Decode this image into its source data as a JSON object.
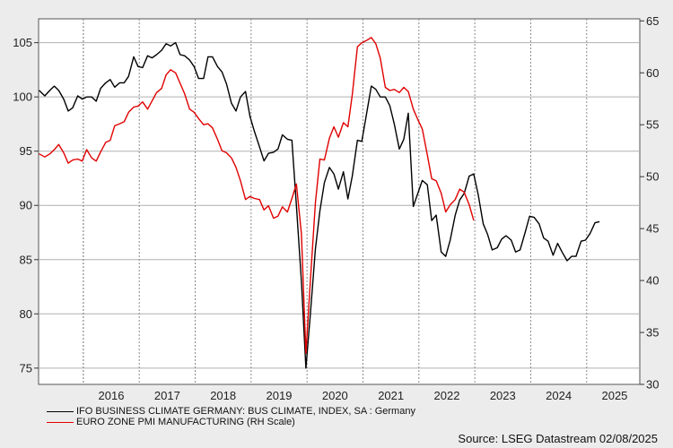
{
  "chart_data": {
    "type": "line",
    "x_axis": {
      "tick_labels": [
        "2016",
        "2017",
        "2018",
        "2019",
        "2020",
        "2021",
        "2022",
        "2023",
        "2024",
        "2025"
      ],
      "range": [
        2015.2,
        2025.95
      ]
    },
    "y_left": {
      "ticks": [
        75,
        80,
        85,
        90,
        95,
        100,
        105
      ],
      "range": [
        73.5,
        107.2
      ]
    },
    "y_right": {
      "ticks": [
        30,
        35,
        40,
        45,
        50,
        55,
        60,
        65
      ],
      "range": [
        30,
        65.2
      ]
    },
    "grid": true,
    "series": [
      {
        "name": "IFO BUSINESS CLIMATE GERMANY: BUS CLIMATE, INDEX, SA : Germany",
        "axis": "left",
        "color": "#000000",
        "points": [
          [
            2015.21,
            100.6
          ],
          [
            2015.31,
            100.1
          ],
          [
            2015.4,
            100.6
          ],
          [
            2015.48,
            101.0
          ],
          [
            2015.56,
            100.6
          ],
          [
            2015.65,
            99.8
          ],
          [
            2015.73,
            98.7
          ],
          [
            2015.81,
            99.0
          ],
          [
            2015.9,
            100.1
          ],
          [
            2015.98,
            99.8
          ],
          [
            2016.06,
            100.0
          ],
          [
            2016.15,
            100.0
          ],
          [
            2016.23,
            99.6
          ],
          [
            2016.31,
            100.8
          ],
          [
            2016.4,
            101.3
          ],
          [
            2016.48,
            101.6
          ],
          [
            2016.56,
            100.9
          ],
          [
            2016.65,
            101.3
          ],
          [
            2016.73,
            101.3
          ],
          [
            2016.81,
            101.9
          ],
          [
            2016.9,
            103.7
          ],
          [
            2016.98,
            102.8
          ],
          [
            2017.06,
            102.7
          ],
          [
            2017.15,
            103.8
          ],
          [
            2017.23,
            103.6
          ],
          [
            2017.31,
            103.9
          ],
          [
            2017.4,
            104.3
          ],
          [
            2017.48,
            104.9
          ],
          [
            2017.56,
            104.7
          ],
          [
            2017.65,
            105.0
          ],
          [
            2017.73,
            103.9
          ],
          [
            2017.81,
            103.8
          ],
          [
            2017.9,
            103.4
          ],
          [
            2017.98,
            102.8
          ],
          [
            2018.06,
            101.7
          ],
          [
            2018.15,
            101.7
          ],
          [
            2018.23,
            103.7
          ],
          [
            2018.31,
            103.7
          ],
          [
            2018.4,
            102.8
          ],
          [
            2018.48,
            102.3
          ],
          [
            2018.56,
            101.2
          ],
          [
            2018.65,
            99.4
          ],
          [
            2018.73,
            98.7
          ],
          [
            2018.81,
            100.0
          ],
          [
            2018.9,
            100.5
          ],
          [
            2018.98,
            98.2
          ],
          [
            2019.06,
            96.8
          ],
          [
            2019.15,
            95.4
          ],
          [
            2019.23,
            94.1
          ],
          [
            2019.31,
            94.8
          ],
          [
            2019.4,
            94.9
          ],
          [
            2019.48,
            95.2
          ],
          [
            2019.56,
            96.5
          ],
          [
            2019.65,
            96.1
          ],
          [
            2019.73,
            96.0
          ],
          [
            2019.81,
            90.0
          ],
          [
            2019.9,
            83.0
          ],
          [
            2019.98,
            75.0
          ],
          [
            2020.06,
            80.0
          ],
          [
            2020.15,
            86.0
          ],
          [
            2020.23,
            89.5
          ],
          [
            2020.31,
            92.1
          ],
          [
            2020.4,
            93.5
          ],
          [
            2020.48,
            92.9
          ],
          [
            2020.56,
            91.5
          ],
          [
            2020.65,
            93.1
          ],
          [
            2020.73,
            90.6
          ],
          [
            2020.81,
            92.7
          ],
          [
            2020.9,
            96.0
          ],
          [
            2020.98,
            95.9
          ],
          [
            2021.06,
            98.3
          ],
          [
            2021.15,
            101.0
          ],
          [
            2021.23,
            100.7
          ],
          [
            2021.31,
            100.0
          ],
          [
            2021.4,
            100.0
          ],
          [
            2021.48,
            99.2
          ],
          [
            2021.56,
            97.5
          ],
          [
            2021.65,
            95.2
          ],
          [
            2021.73,
            96.1
          ],
          [
            2021.81,
            98.5
          ],
          [
            2021.9,
            89.9
          ],
          [
            2021.98,
            91.1
          ],
          [
            2022.06,
            92.3
          ],
          [
            2022.15,
            91.9
          ],
          [
            2022.23,
            88.6
          ],
          [
            2022.31,
            89.1
          ],
          [
            2022.4,
            85.7
          ],
          [
            2022.48,
            85.3
          ],
          [
            2022.56,
            86.8
          ],
          [
            2022.65,
            89.1
          ],
          [
            2022.73,
            90.5
          ],
          [
            2022.81,
            91.1
          ],
          [
            2022.9,
            92.7
          ],
          [
            2022.98,
            92.9
          ],
          [
            2023.06,
            91.0
          ],
          [
            2023.15,
            88.3
          ],
          [
            2023.23,
            87.3
          ],
          [
            2023.31,
            85.9
          ],
          [
            2023.4,
            86.1
          ],
          [
            2023.48,
            86.9
          ],
          [
            2023.56,
            87.2
          ],
          [
            2023.65,
            86.8
          ],
          [
            2023.73,
            85.7
          ],
          [
            2023.81,
            85.9
          ],
          [
            2023.9,
            87.5
          ],
          [
            2023.98,
            89.0
          ],
          [
            2024.06,
            88.9
          ],
          [
            2024.15,
            88.3
          ],
          [
            2024.23,
            87.0
          ],
          [
            2024.31,
            86.7
          ],
          [
            2024.4,
            85.4
          ],
          [
            2024.48,
            86.5
          ],
          [
            2024.56,
            85.7
          ],
          [
            2024.65,
            84.9
          ],
          [
            2024.73,
            85.3
          ],
          [
            2024.81,
            85.3
          ],
          [
            2024.9,
            86.7
          ],
          [
            2024.98,
            86.8
          ],
          [
            2025.06,
            87.4
          ],
          [
            2025.15,
            88.4
          ],
          [
            2025.23,
            88.5
          ]
        ]
      },
      {
        "name": "EURO ZONE PMI MANUFACTURING (RH Scale)",
        "axis": "right",
        "color": "#e00000",
        "points": [
          [
            2015.21,
            52.2
          ],
          [
            2015.31,
            51.9
          ],
          [
            2015.4,
            52.2
          ],
          [
            2015.48,
            52.6
          ],
          [
            2015.56,
            53.1
          ],
          [
            2015.65,
            52.3
          ],
          [
            2015.73,
            51.3
          ],
          [
            2015.81,
            51.6
          ],
          [
            2015.9,
            51.7
          ],
          [
            2015.98,
            51.5
          ],
          [
            2016.06,
            52.6
          ],
          [
            2016.15,
            51.8
          ],
          [
            2016.23,
            51.5
          ],
          [
            2016.31,
            52.4
          ],
          [
            2016.4,
            53.3
          ],
          [
            2016.48,
            53.5
          ],
          [
            2016.56,
            54.9
          ],
          [
            2016.65,
            55.1
          ],
          [
            2016.73,
            55.3
          ],
          [
            2016.81,
            56.2
          ],
          [
            2016.9,
            56.7
          ],
          [
            2016.98,
            56.8
          ],
          [
            2017.06,
            57.2
          ],
          [
            2017.15,
            56.5
          ],
          [
            2017.23,
            57.3
          ],
          [
            2017.31,
            58.1
          ],
          [
            2017.4,
            58.5
          ],
          [
            2017.48,
            59.8
          ],
          [
            2017.56,
            60.3
          ],
          [
            2017.65,
            60.0
          ],
          [
            2017.73,
            59.0
          ],
          [
            2017.81,
            58.0
          ],
          [
            2017.9,
            56.5
          ],
          [
            2017.98,
            56.2
          ],
          [
            2018.06,
            55.6
          ],
          [
            2018.15,
            55.0
          ],
          [
            2018.23,
            55.1
          ],
          [
            2018.31,
            54.7
          ],
          [
            2018.4,
            53.6
          ],
          [
            2018.48,
            52.5
          ],
          [
            2018.56,
            52.3
          ],
          [
            2018.65,
            51.8
          ],
          [
            2018.73,
            50.9
          ],
          [
            2018.81,
            49.6
          ],
          [
            2018.9,
            47.8
          ],
          [
            2018.98,
            48.1
          ],
          [
            2019.06,
            47.9
          ],
          [
            2019.15,
            47.8
          ],
          [
            2019.23,
            46.8
          ],
          [
            2019.31,
            47.2
          ],
          [
            2019.4,
            46.0
          ],
          [
            2019.48,
            46.2
          ],
          [
            2019.56,
            47.1
          ],
          [
            2019.65,
            46.6
          ],
          [
            2019.73,
            47.9
          ],
          [
            2019.81,
            49.3
          ],
          [
            2019.9,
            44.5
          ],
          [
            2019.98,
            33.0
          ],
          [
            2020.06,
            40.0
          ],
          [
            2020.15,
            47.5
          ],
          [
            2020.23,
            51.7
          ],
          [
            2020.31,
            51.6
          ],
          [
            2020.4,
            53.7
          ],
          [
            2020.48,
            54.8
          ],
          [
            2020.56,
            53.8
          ],
          [
            2020.65,
            55.2
          ],
          [
            2020.73,
            54.8
          ],
          [
            2020.81,
            57.9
          ],
          [
            2020.9,
            62.5
          ],
          [
            2020.98,
            62.9
          ],
          [
            2021.06,
            63.1
          ],
          [
            2021.15,
            63.4
          ],
          [
            2021.23,
            62.8
          ],
          [
            2021.31,
            61.4
          ],
          [
            2021.4,
            58.6
          ],
          [
            2021.48,
            58.3
          ],
          [
            2021.56,
            58.4
          ],
          [
            2021.65,
            58.1
          ],
          [
            2021.73,
            58.6
          ],
          [
            2021.81,
            58.2
          ],
          [
            2021.9,
            56.5
          ],
          [
            2021.98,
            55.5
          ],
          [
            2022.06,
            54.6
          ],
          [
            2022.15,
            52.1
          ],
          [
            2022.23,
            49.8
          ],
          [
            2022.31,
            49.6
          ],
          [
            2022.4,
            48.4
          ],
          [
            2022.48,
            46.6
          ],
          [
            2022.56,
            47.3
          ],
          [
            2022.65,
            47.8
          ],
          [
            2022.73,
            48.8
          ],
          [
            2022.81,
            48.5
          ],
          [
            2022.9,
            47.3
          ],
          [
            2022.98,
            45.8
          ]
        ]
      }
    ],
    "legend_placement": "bottom-left"
  },
  "source": "Source: LSEG Datastream 02/08/2025",
  "legend": [
    {
      "label": "IFO BUSINESS CLIMATE GERMANY: BUS CLIMATE, INDEX, SA : Germany",
      "color": "#000000"
    },
    {
      "label": "EURO ZONE PMI MANUFACTURING (RH Scale)",
      "color": "#e00000"
    }
  ]
}
